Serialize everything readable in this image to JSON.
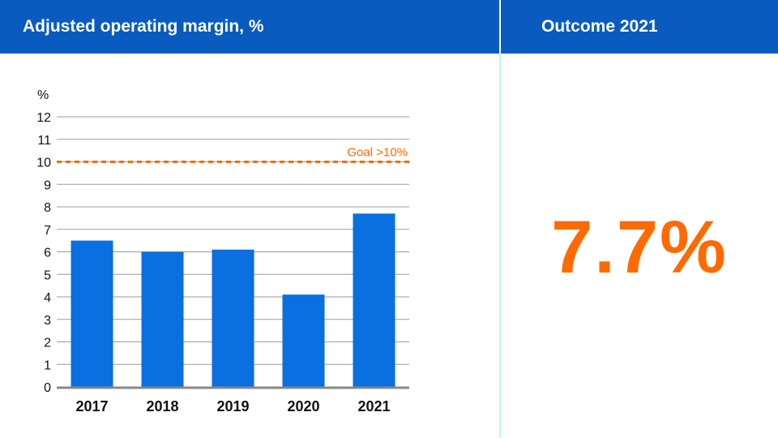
{
  "header": {
    "chart_title": "Adjusted operating margin, %",
    "outcome_title": "Outcome 2021"
  },
  "kpi": {
    "value": "7.7%"
  },
  "colors": {
    "header_bg": "#0a5bbf",
    "bar": "#0a6fe0",
    "goal": "#ff6a00",
    "kpi": "#ff6a00"
  },
  "chart_data": {
    "type": "bar",
    "categories": [
      "2017",
      "2018",
      "2019",
      "2020",
      "2021"
    ],
    "values": [
      6.5,
      6.0,
      6.1,
      4.1,
      7.7
    ],
    "ylabel": "%",
    "ylim": [
      0,
      12
    ],
    "yticks": [
      0,
      1,
      2,
      3,
      4,
      5,
      6,
      7,
      8,
      9,
      10,
      11,
      12
    ],
    "grid": true,
    "goal": {
      "value": 10,
      "label": "Goal >10%"
    }
  }
}
